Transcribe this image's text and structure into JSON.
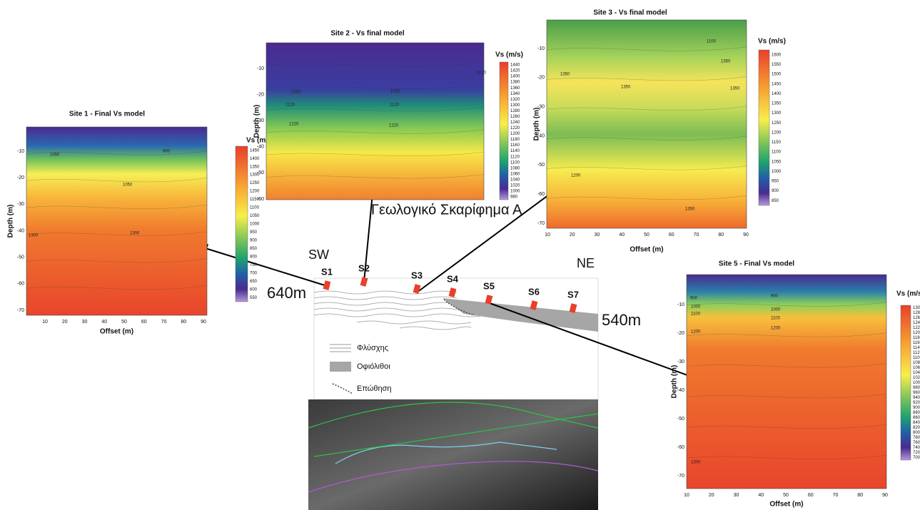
{
  "panels": [
    {
      "title": "Site 1 - Final Vs model",
      "y_label": "Depth (m)",
      "x_label": "Offset (m)",
      "y_ticks": [
        "-10",
        "-20",
        "-30",
        "-40",
        "-50",
        "-60",
        "-70"
      ],
      "x_ticks": [
        "10",
        "20",
        "30",
        "40",
        "50",
        "60",
        "70",
        "80",
        "90"
      ],
      "colorbar_title": "Vs (m/s)",
      "colorbar_ticks": [
        "1450",
        "1400",
        "1350",
        "1300",
        "1250",
        "1200",
        "1150",
        "1100",
        "1050",
        "1000",
        "950",
        "900",
        "850",
        "800",
        "750",
        "700",
        "650",
        "600",
        "550"
      ],
      "contour_labels": [
        "1050",
        "1050",
        "1300",
        "1300",
        "900"
      ]
    },
    {
      "title": "Site 2 - Vs final model",
      "y_label": "Depth (m)",
      "y_ticks": [
        "-10",
        "-20",
        "-30",
        "-40",
        "-50",
        "-60"
      ],
      "colorbar_title": "Vs (m/s)",
      "colorbar_ticks": [
        "1440",
        "1420",
        "1400",
        "1380",
        "1360",
        "1340",
        "1320",
        "1300",
        "1280",
        "1260",
        "1240",
        "1220",
        "1200",
        "1180",
        "1160",
        "1140",
        "1120",
        "1100",
        "1080",
        "1060",
        "1040",
        "1020",
        "1000",
        "980"
      ],
      "contour_labels": [
        "1020",
        "1020",
        "1120",
        "1120",
        "1220",
        "1220",
        "1120"
      ]
    },
    {
      "title": "Site 3 - Vs final model",
      "y_label": "Depth (m)",
      "x_label": "Offset (m)",
      "y_ticks": [
        "-10",
        "-20",
        "-30",
        "-40",
        "-50",
        "-60",
        "-70"
      ],
      "x_ticks": [
        "10",
        "20",
        "30",
        "40",
        "50",
        "60",
        "70",
        "80",
        "90"
      ],
      "colorbar_title": "Vs (m/s)",
      "colorbar_ticks": [
        "1600",
        "1550",
        "1500",
        "1450",
        "1400",
        "1350",
        "1300",
        "1250",
        "1200",
        "1150",
        "1100",
        "1050",
        "1000",
        "950",
        "900",
        "850"
      ],
      "contour_labels": [
        "1100",
        "1350",
        "1350",
        "1350",
        "1350",
        "1200",
        "1350"
      ]
    },
    {
      "title": "Site 5 - Final Vs model",
      "y_label": "Depth (m)",
      "x_label": "Offset (m)",
      "y_ticks": [
        "-10",
        "-20",
        "-30",
        "-40",
        "-50",
        "-60",
        "-70"
      ],
      "x_ticks": [
        "10",
        "20",
        "30",
        "40",
        "50",
        "60",
        "70",
        "80",
        "90"
      ],
      "colorbar_title": "Vs (m/s)",
      "colorbar_ticks": [
        "1300",
        "1280",
        "1260",
        "1240",
        "1220",
        "1200",
        "1180",
        "1160",
        "1140",
        "1120",
        "1100",
        "1080",
        "1060",
        "1040",
        "1020",
        "1000",
        "980",
        "960",
        "940",
        "920",
        "900",
        "880",
        "860",
        "840",
        "820",
        "800",
        "780",
        "760",
        "740",
        "720",
        "700"
      ],
      "contour_labels": [
        "900",
        "900",
        "1000",
        "1000",
        "1100",
        "1100",
        "1200",
        "1200",
        "1300"
      ]
    }
  ],
  "section": {
    "title": "Γεωλογικό Σκαρίφημα Α",
    "left_side": "SW",
    "right_side": "NE",
    "left_elevation": "640m",
    "right_elevation": "540m",
    "sites": [
      "S1",
      "S2",
      "S3",
      "S4",
      "S5",
      "S6",
      "S7"
    ],
    "legend": [
      "Φλύσχης",
      "Οφιόλιθοι",
      "Επώθηση"
    ]
  }
}
